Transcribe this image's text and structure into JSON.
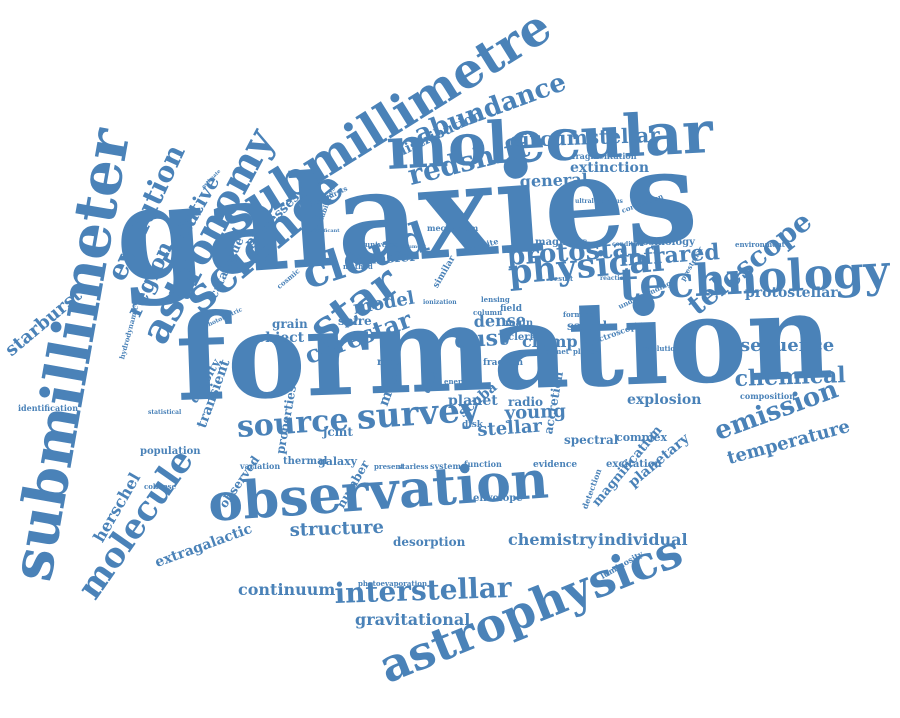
{
  "colors": {
    "word": "#4a82b8",
    "background": "#ffffff"
  },
  "words": [
    "galaxies",
    "formation",
    "molecular",
    "submillimeter",
    "submillimetre",
    "observation",
    "astrophysics",
    "technology",
    "science",
    "astronomy",
    "cloud",
    "star",
    "survey",
    "source",
    "physical",
    "molecule",
    "redshift",
    "abundance",
    "telescope",
    "evolution",
    "region",
    "radiative",
    "protostar",
    "infrared",
    "emission",
    "interstellar",
    "chemical",
    "circumstellar",
    "starburst",
    "corestar",
    "structure",
    "desorption",
    "chemistry",
    "individual",
    "continuum",
    "gravitational",
    "extragalactic",
    "herschel",
    "temperature",
    "sequence",
    "protostellar",
    "dust",
    "dense",
    "model",
    "stellar",
    "young",
    "general",
    "extinction",
    "distribution",
    "fragmentation",
    "processes",
    "transfer",
    "mechanism",
    "cosmology",
    "magnetic",
    "instabilities",
    "starbursts",
    "transient",
    "density",
    "catalogue",
    "grain",
    "object",
    "spire",
    "jcmt",
    "properties",
    "rate",
    "clump",
    "scuba",
    "radio",
    "accretion",
    "explosion",
    "composition",
    "planetary",
    "excitation",
    "observed",
    "thermal",
    "galaxy",
    "number",
    "variation",
    "system",
    "identification",
    "population",
    "statistical",
    "hydrodynamic",
    "cosmic",
    "satellite",
    "universe",
    "method",
    "similar",
    "forming",
    "sample",
    "resolution",
    "planck",
    "comet",
    "clerk",
    "spectral",
    "evidence",
    "detection",
    "envelope",
    "luminosity",
    "photoevaporation",
    "magnification",
    "complex",
    "function",
    "present",
    "starless",
    "fraction",
    "disk",
    "energy",
    "data",
    "field",
    "main",
    "result",
    "reaction",
    "condition",
    "environment",
    "understanding",
    "prestellar",
    "correlation",
    "ultraluminous",
    "spectroscopic",
    "collapse",
    "photometric",
    "estimate",
    "significant",
    "instrument",
    "ionization",
    "lensing",
    "column",
    "planet",
    "mass",
    "line"
  ],
  "title": ""
}
